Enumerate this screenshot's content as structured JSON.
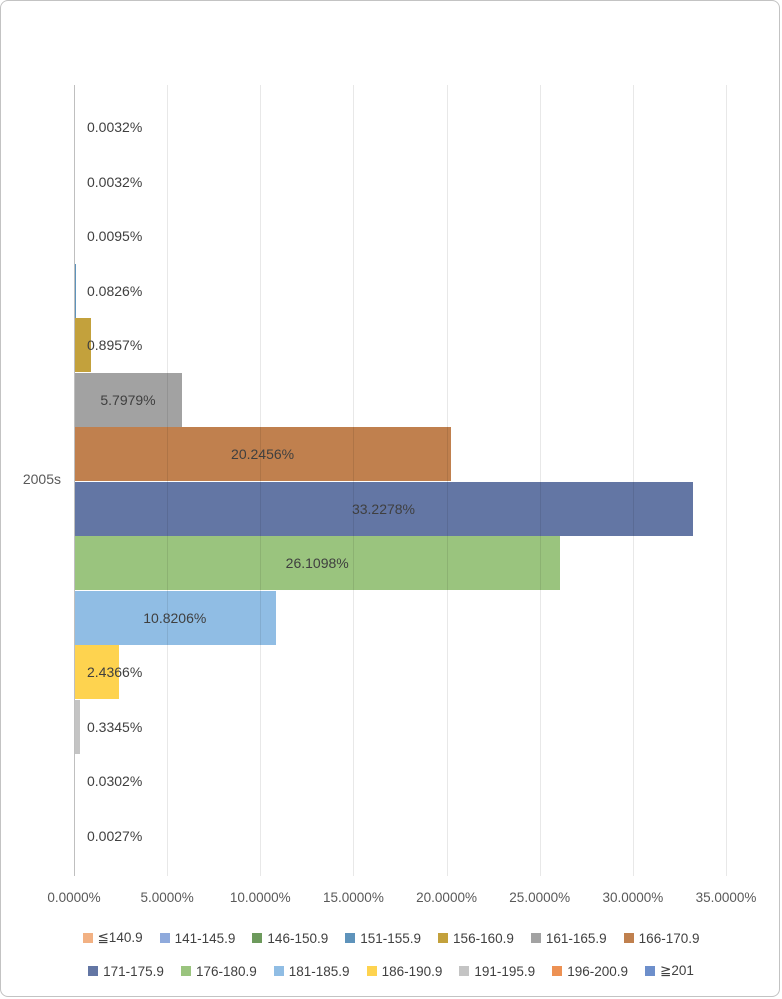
{
  "chart_data": {
    "type": "bar",
    "orientation": "horizontal",
    "title": "",
    "category": "2005s",
    "xlabel": "",
    "ylabel": "",
    "xlim": [
      0,
      35
    ],
    "grid": true,
    "legend_position": "bottom",
    "x_ticks": [
      "0.0000%",
      "5.0000%",
      "10.0000%",
      "15.0000%",
      "20.0000%",
      "25.0000%",
      "30.0000%",
      "35.0000%"
    ],
    "series": [
      {
        "name": "≦140.9",
        "value": 0.0032,
        "label": "0.0032%",
        "color": "#F2B183"
      },
      {
        "name": "141-145.9",
        "value": 0.0032,
        "label": "0.0032%",
        "color": "#8FAADC"
      },
      {
        "name": "146-150.9",
        "value": 0.0095,
        "label": "0.0095%",
        "color": "#6D9A5C"
      },
      {
        "name": "151-155.9",
        "value": 0.0826,
        "label": "0.0826%",
        "color": "#5E93BB"
      },
      {
        "name": "156-160.9",
        "value": 0.8957,
        "label": "0.8957%",
        "color": "#C3A13C"
      },
      {
        "name": "161-165.9",
        "value": 5.7979,
        "label": "5.7979%",
        "color": "#A2A2A2"
      },
      {
        "name": "166-170.9",
        "value": 20.2456,
        "label": "20.2456%",
        "color": "#C0804E"
      },
      {
        "name": "171-175.9",
        "value": 33.2278,
        "label": "33.2278%",
        "color": "#6376A4"
      },
      {
        "name": "176-180.9",
        "value": 26.1098,
        "label": "26.1098%",
        "color": "#9AC47E"
      },
      {
        "name": "181-185.9",
        "value": 10.8206,
        "label": "10.8206%",
        "color": "#90BDE4"
      },
      {
        "name": "186-190.9",
        "value": 2.4366,
        "label": "2.4366%",
        "color": "#FED34F"
      },
      {
        "name": "191-195.9",
        "value": 0.3345,
        "label": "0.3345%",
        "color": "#C4C4C4"
      },
      {
        "name": "196-200.9",
        "value": 0.0302,
        "label": "0.0302%",
        "color": "#ED9153"
      },
      {
        "name": "≧201",
        "value": 0.0027,
        "label": "0.0027%",
        "color": "#6D8FCB"
      }
    ]
  }
}
